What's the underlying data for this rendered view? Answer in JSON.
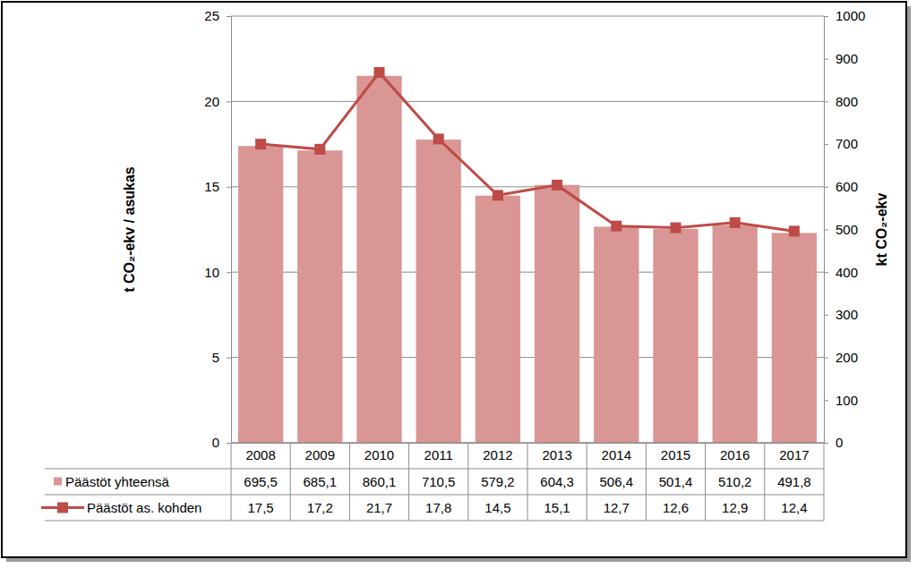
{
  "chart_data": {
    "type": "bar",
    "categories": [
      "2008",
      "2009",
      "2010",
      "2011",
      "2012",
      "2013",
      "2014",
      "2015",
      "2016",
      "2017"
    ],
    "series": [
      {
        "name": "Päästöt yhteensä",
        "type": "bar",
        "axis": "y2",
        "color": "#d99694",
        "values": [
          695.5,
          685.1,
          860.1,
          710.5,
          579.2,
          604.3,
          506.4,
          501.4,
          510.2,
          491.8
        ],
        "value_labels": [
          "695,5",
          "685,1",
          "860,1",
          "710,5",
          "579,2",
          "604,3",
          "506,4",
          "501,4",
          "510,2",
          "491,8"
        ]
      },
      {
        "name": "Päästöt as. kohden",
        "type": "line",
        "color": "#be4b48",
        "marker": "square",
        "values": [
          17.5,
          17.2,
          21.7,
          17.8,
          14.5,
          15.1,
          12.7,
          12.6,
          12.9,
          12.4
        ],
        "value_labels": [
          "17,5",
          "17,2",
          "21,7",
          "17,8",
          "14,5",
          "15,1",
          "12,7",
          "12,6",
          "12,9",
          "12,4"
        ]
      }
    ],
    "ylabel": "t CO₂-ekv / asukas",
    "y2label": "kt CO₂-ekv",
    "ylim": [
      0,
      25
    ],
    "yticks": [
      0,
      5,
      10,
      15,
      20,
      25
    ],
    "y2lim": [
      0,
      1000
    ],
    "y2ticks": [
      0,
      100,
      200,
      300,
      400,
      500,
      600,
      700,
      800,
      900,
      1000
    ],
    "grid": true
  }
}
